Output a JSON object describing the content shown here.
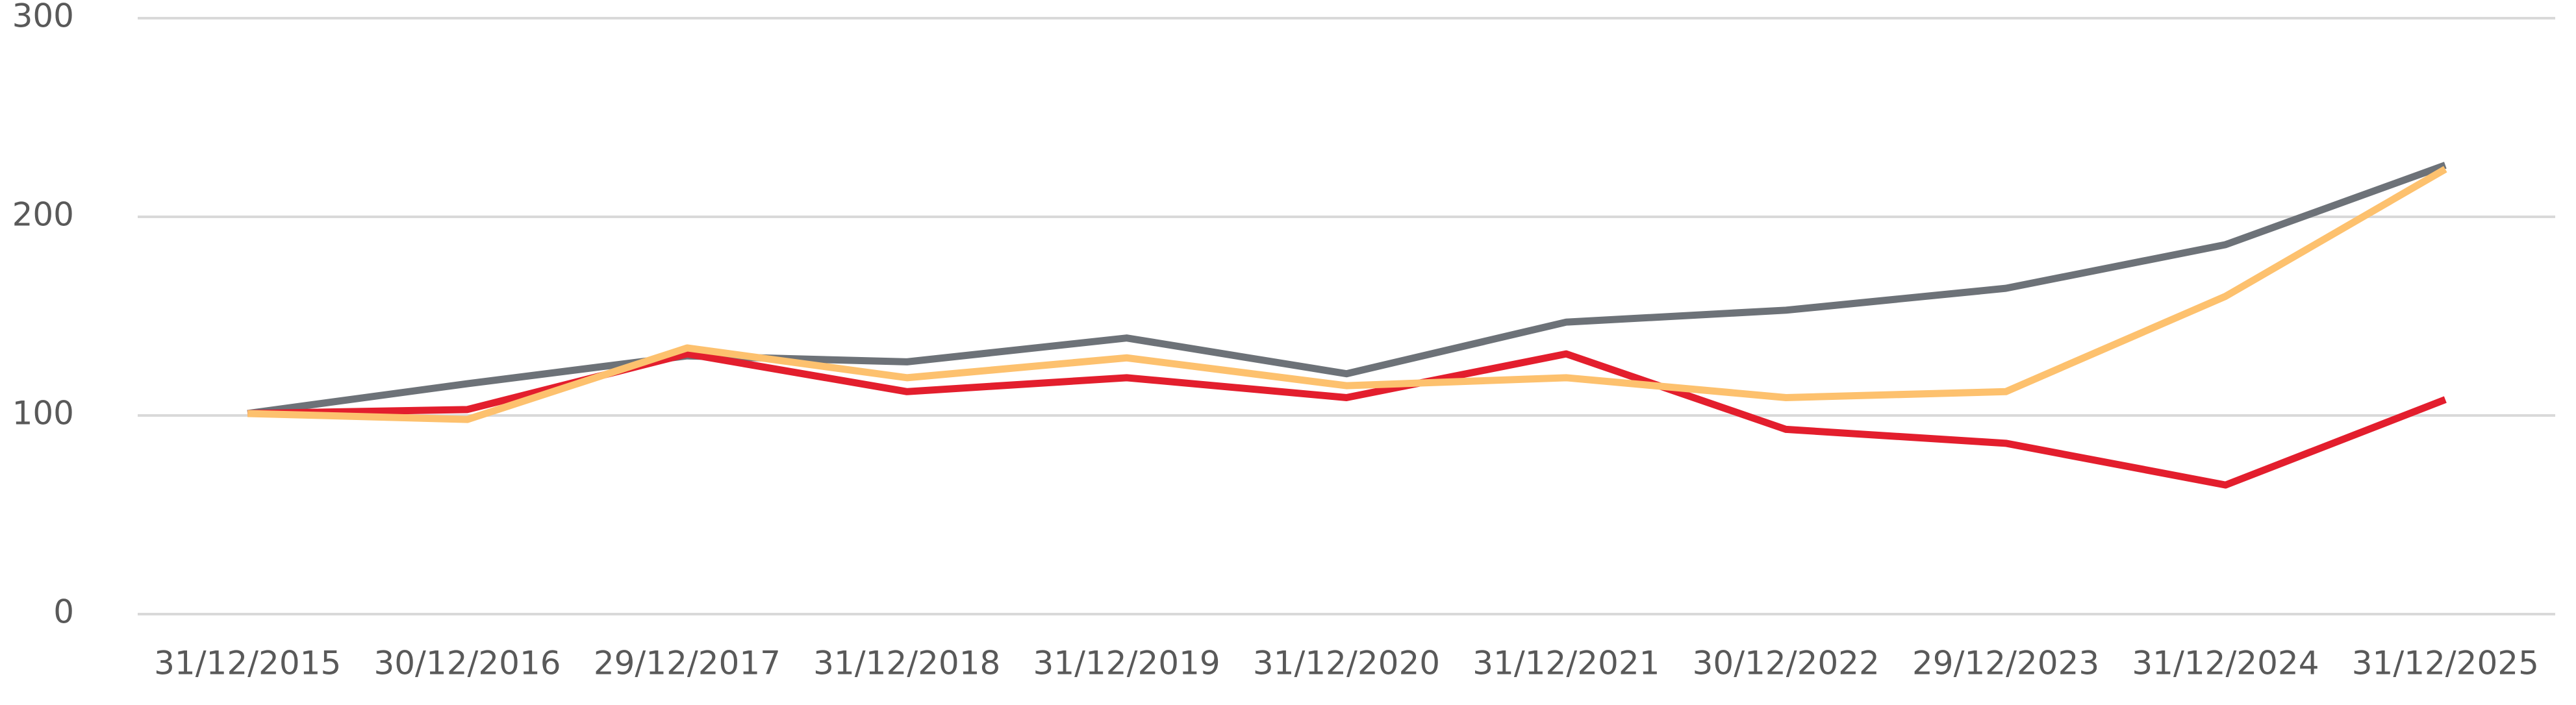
{
  "chart_data": {
    "type": "line",
    "categories": [
      "31/12/2015",
      "30/12/2016",
      "29/12/2017",
      "31/12/2018",
      "31/12/2019",
      "31/12/2020",
      "31/12/2021",
      "30/12/2022",
      "29/12/2023",
      "31/12/2024",
      "31/12/2025"
    ],
    "series": [
      {
        "color": "#6d7278",
        "values": [
          101,
          116,
          130,
          127,
          139,
          121,
          147,
          153,
          164,
          186,
          226
        ]
      },
      {
        "color": "#e31e2d",
        "values": [
          101,
          103,
          131,
          112,
          119,
          109,
          131,
          93,
          86,
          65,
          108
        ]
      },
      {
        "color": "#fdc16e",
        "values": [
          101,
          98,
          134,
          119,
          129,
          115,
          119,
          109,
          112,
          160,
          224
        ]
      }
    ],
    "ylim": [
      0,
      300
    ],
    "yticks": [
      0,
      100,
      200,
      300
    ],
    "grid": true
  }
}
